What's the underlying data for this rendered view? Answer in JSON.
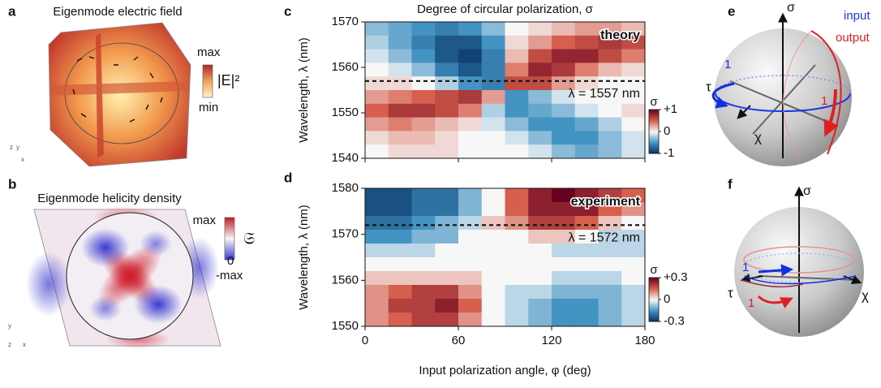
{
  "panels": {
    "a": {
      "letter": "a",
      "title": "Eigenmode electric field",
      "cbar_max": "max",
      "cbar_label": "|E|²",
      "cbar_min": "min",
      "axes": [
        "z",
        "y",
        "x"
      ]
    },
    "b": {
      "letter": "b",
      "title": "Eigenmode helicity density",
      "cbar_max": "max",
      "cbar_label": "𝔖",
      "cbar_zero": "0",
      "cbar_min": "-max",
      "axes": [
        "y",
        "z",
        "x"
      ]
    },
    "e": {
      "letter": "e",
      "sigma": "σ",
      "tau": "τ",
      "chi": "χ",
      "legend": [
        "input",
        "output"
      ],
      "marks": [
        "1",
        "1"
      ]
    },
    "f": {
      "letter": "f",
      "sigma": "σ",
      "tau": "τ",
      "chi": "χ",
      "marks": [
        "1",
        "1"
      ]
    }
  },
  "chart_data": [
    {
      "type": "heatmap",
      "letter": "c",
      "title": "Degree of circular polarization, σ",
      "annotation": "theory",
      "ylabel": "Wavelength, λ (nm)",
      "colormap": "RdBu_r",
      "xtick_labels": false,
      "x": [
        7.5,
        22.5,
        37.5,
        52.5,
        67.5,
        82.5,
        97.5,
        112.5,
        127.5,
        142.5,
        157.5,
        172.5
      ],
      "y": [
        1568.5,
        1565.5,
        1562.5,
        1559.5,
        1556.5,
        1553.5,
        1550.5,
        1547.5,
        1544.5,
        1541.5
      ],
      "z": [
        [
          -0.3,
          -0.4,
          -0.5,
          -0.6,
          -0.5,
          -0.3,
          0,
          0.1,
          0.2,
          0.3,
          0.3,
          0.2
        ],
        [
          -0.2,
          -0.4,
          -0.6,
          -0.8,
          -0.8,
          -0.5,
          0.1,
          0.3,
          0.5,
          0.6,
          0.7,
          0.6
        ],
        [
          -0.1,
          -0.3,
          -0.5,
          -0.8,
          -0.9,
          -0.6,
          0.2,
          0.6,
          0.8,
          0.8,
          0.6,
          0.4
        ],
        [
          0,
          -0.1,
          -0.3,
          -0.6,
          -0.8,
          -0.6,
          0.4,
          0.8,
          0.7,
          0.4,
          0.2,
          0.1
        ],
        [
          0.1,
          0.1,
          0,
          -0.2,
          -0.5,
          -0.6,
          0.6,
          0.6,
          0.3,
          0.1,
          0,
          0
        ],
        [
          0.3,
          0.4,
          0.5,
          0.6,
          0.7,
          0.3,
          -0.5,
          -0.3,
          -0.1,
          0,
          0,
          0
        ],
        [
          0.5,
          0.7,
          0.7,
          0.6,
          0.4,
          -0.2,
          -0.5,
          -0.4,
          -0.3,
          -0.1,
          0,
          0.1
        ],
        [
          0.3,
          0.4,
          0.3,
          0.2,
          0.1,
          -0.1,
          -0.3,
          -0.5,
          -0.5,
          -0.4,
          -0.2,
          0
        ],
        [
          0.1,
          0.2,
          0.2,
          0.1,
          0,
          0,
          -0.1,
          -0.3,
          -0.5,
          -0.5,
          -0.3,
          -0.1
        ],
        [
          0,
          0.1,
          0.1,
          0.1,
          0,
          0,
          0,
          -0.1,
          -0.3,
          -0.4,
          -0.3,
          -0.1
        ]
      ],
      "xlim": [
        0,
        180
      ],
      "xticks": [
        0,
        60,
        120,
        180
      ],
      "ylim": [
        1540,
        1570
      ],
      "yticks": [
        1540,
        1550,
        1560,
        1570
      ],
      "reference_line": {
        "value": 1557,
        "label": "λ = 1557 nm"
      },
      "colorbar": {
        "title": "σ",
        "clim": [
          -1,
          1
        ],
        "ticks": [
          {
            "value": 1,
            "label": "+1"
          },
          0,
          {
            "value": -1,
            "label": "-1"
          }
        ]
      }
    },
    {
      "type": "heatmap",
      "letter": "d",
      "annotation": "experiment",
      "ylabel": "Wavelength, λ (nm)",
      "xlabel": "Input polarization angle, φ (deg)",
      "colormap": "RdBu_r",
      "xtick_labels": true,
      "x": [
        7.5,
        22.5,
        37.5,
        52.5,
        67.5,
        82.5,
        97.5,
        112.5,
        127.5,
        142.5,
        157.5,
        172.5
      ],
      "y": [
        1578.5,
        1575.5,
        1572.5,
        1569.5,
        1566.5,
        1563.5,
        1560.5,
        1557.5,
        1554.5,
        1551.5
      ],
      "z": [
        [
          -0.25,
          -0.25,
          -0.2,
          -0.2,
          -0.1,
          0,
          0.15,
          0.25,
          0.3,
          0.25,
          0.2,
          0.15
        ],
        [
          -0.25,
          -0.25,
          -0.2,
          -0.2,
          -0.1,
          0,
          0.15,
          0.25,
          0.25,
          0.25,
          0.15,
          0.1
        ],
        [
          -0.2,
          -0.2,
          -0.15,
          -0.1,
          -0.05,
          0.05,
          0.1,
          0.2,
          0.2,
          0.15,
          0.05,
          0
        ],
        [
          -0.15,
          -0.15,
          -0.1,
          -0.1,
          0,
          0,
          0,
          0.05,
          0.05,
          0,
          -0.05,
          -0.05
        ],
        [
          -0.05,
          -0.05,
          -0.05,
          0,
          0,
          0,
          0,
          0,
          -0.05,
          -0.05,
          -0.05,
          -0.05
        ],
        [
          0,
          0,
          0,
          0,
          0,
          0,
          0,
          0,
          0,
          0,
          0,
          0
        ],
        [
          0.05,
          0.05,
          0.05,
          0.05,
          0.05,
          0,
          0,
          0,
          -0.05,
          -0.05,
          -0.05,
          0
        ],
        [
          0.1,
          0.15,
          0.2,
          0.2,
          0.1,
          0,
          -0.05,
          -0.05,
          -0.1,
          -0.1,
          -0.1,
          -0.05
        ],
        [
          0.1,
          0.2,
          0.2,
          0.25,
          0.15,
          0,
          -0.05,
          -0.1,
          -0.15,
          -0.15,
          -0.1,
          -0.05
        ],
        [
          0.1,
          0.15,
          0.2,
          0.2,
          0.1,
          0,
          -0.05,
          -0.1,
          -0.15,
          -0.15,
          -0.1,
          -0.05
        ]
      ],
      "xlim": [
        0,
        180
      ],
      "xticks": [
        0,
        60,
        120,
        180
      ],
      "ylim": [
        1550,
        1580
      ],
      "yticks": [
        1550,
        1560,
        1570,
        1580
      ],
      "reference_line": {
        "value": 1572,
        "label": "λ = 1572 nm"
      },
      "colorbar": {
        "title": "σ",
        "clim": [
          -0.3,
          0.3
        ],
        "ticks": [
          {
            "value": 0.3,
            "label": "+0.3"
          },
          0,
          {
            "value": -0.3,
            "label": "-0.3"
          }
        ]
      }
    }
  ]
}
